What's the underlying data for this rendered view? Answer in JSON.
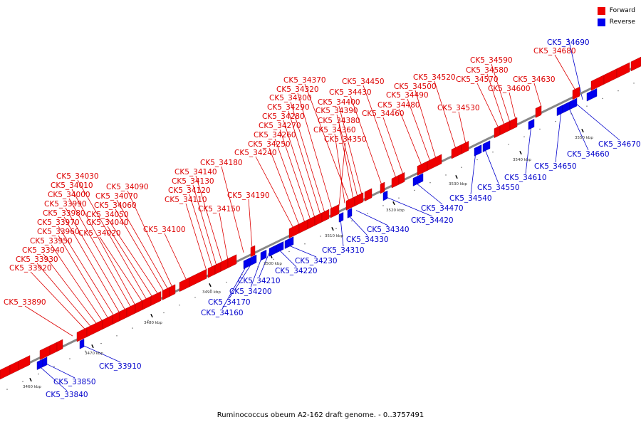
{
  "legend": [
    {
      "label": "Forward",
      "color": "#ee0000"
    },
    {
      "label": "Reverse",
      "color": "#0000ee"
    }
  ],
  "caption": "Ruminococcus obeum A2-162 draft genome. - 0..3757491",
  "kbp_ticks": [
    "3460 kbp",
    "3470 kbp",
    "3480 kbp",
    "3490 kbp",
    "3500 kbp",
    "3510 kbp",
    "3520 kbp",
    "3530 kbp",
    "3540 kbp",
    "3550 kbp"
  ],
  "forward_labels": [
    "CK5_33890",
    "CK5_33920",
    "CK5_33930",
    "CK5_33940",
    "CK5_33950",
    "CK5_33960",
    "CK5_33970",
    "CK5_33980",
    "CK5_33990",
    "CK5_34000",
    "CK5_34010",
    "CK5_34020",
    "CK5_34030",
    "CK5_34040",
    "CK5_34050",
    "CK5_34060",
    "CK5_34070",
    "CK5_34090",
    "CK5_34100",
    "CK5_34110",
    "CK5_34120",
    "CK5_34130",
    "CK5_34140",
    "CK5_34150",
    "CK5_34180",
    "CK5_34190",
    "CK5_34240",
    "CK5_34250",
    "CK5_34260",
    "CK5_34270",
    "CK5_34280",
    "CK5_34290",
    "CK5_34300",
    "CK5_34320",
    "CK5_34350",
    "CK5_34360",
    "CK5_34370",
    "CK5_34380",
    "CK5_34390",
    "CK5_34400",
    "CK5_34430",
    "CK5_34450",
    "CK5_34460",
    "CK5_34480",
    "CK5_34490",
    "CK5_34500",
    "CK5_34520",
    "CK5_34530",
    "CK5_34570",
    "CK5_34580",
    "CK5_34590",
    "CK5_34600",
    "CK5_34630",
    "CK5_34680"
  ],
  "reverse_labels": [
    "CK5_33840",
    "CK5_33850",
    "CK5_33910",
    "CK5_34160",
    "CK5_34170",
    "CK5_34200",
    "CK5_34210",
    "CK5_34220",
    "CK5_34230",
    "CK5_34310",
    "CK5_34330",
    "CK5_34340",
    "CK5_34420",
    "CK5_34470",
    "CK5_34540",
    "CK5_34550",
    "CK5_34610",
    "CK5_34650",
    "CK5_34660",
    "CK5_34670",
    "CK5_34690"
  ]
}
